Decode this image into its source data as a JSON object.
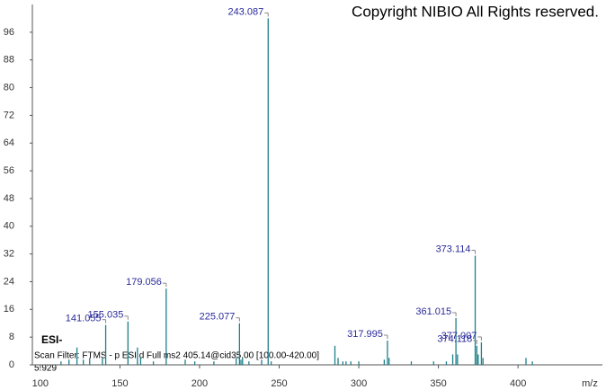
{
  "chart_data": {
    "type": "stem",
    "title": "Copyright NIBIO All Rights reserved.",
    "x_label": "m/z",
    "annotations": [
      "ESI-",
      "Scan Filter: FTMS - p ESI d Full ms2 405.14@cid35.00 [100.00-420.00]",
      "5.929"
    ],
    "color": "#1e7f8a",
    "label_color": "#2a2a9a",
    "xlim": [
      95,
      453
    ],
    "ylim": [
      0,
      104
    ],
    "xticks": [
      100,
      150,
      200,
      250,
      300,
      350,
      400
    ],
    "yticks": [
      0,
      8,
      16,
      24,
      32,
      40,
      48,
      56,
      64,
      72,
      80,
      88,
      96
    ],
    "peaks": {
      "x": [
        141.055,
        155.035,
        179.056,
        225.077,
        243.087,
        317.995,
        361.015,
        373.114,
        374.118,
        377.007
      ],
      "values": [
        11.5,
        12.5,
        22,
        12,
        100,
        7,
        13.5,
        31.5,
        5.5,
        6.5
      ]
    },
    "minor_peaks": {
      "x": [
        113,
        118,
        123,
        127,
        131,
        139,
        161,
        163,
        171,
        191,
        197,
        209,
        223,
        226,
        227,
        231,
        239,
        245,
        285,
        287,
        290,
        292,
        295,
        300,
        316,
        319,
        333,
        347,
        355,
        359,
        362,
        375,
        378,
        405,
        409
      ],
      "values": [
        1,
        1.5,
        5,
        1.5,
        2,
        2,
        5,
        2,
        1,
        1.5,
        1,
        1,
        2,
        1.5,
        2,
        1,
        1.5,
        1,
        5.5,
        2,
        1,
        1,
        1,
        1,
        1.5,
        2,
        1,
        1,
        1,
        3,
        3,
        3,
        2,
        2,
        1
      ]
    }
  }
}
